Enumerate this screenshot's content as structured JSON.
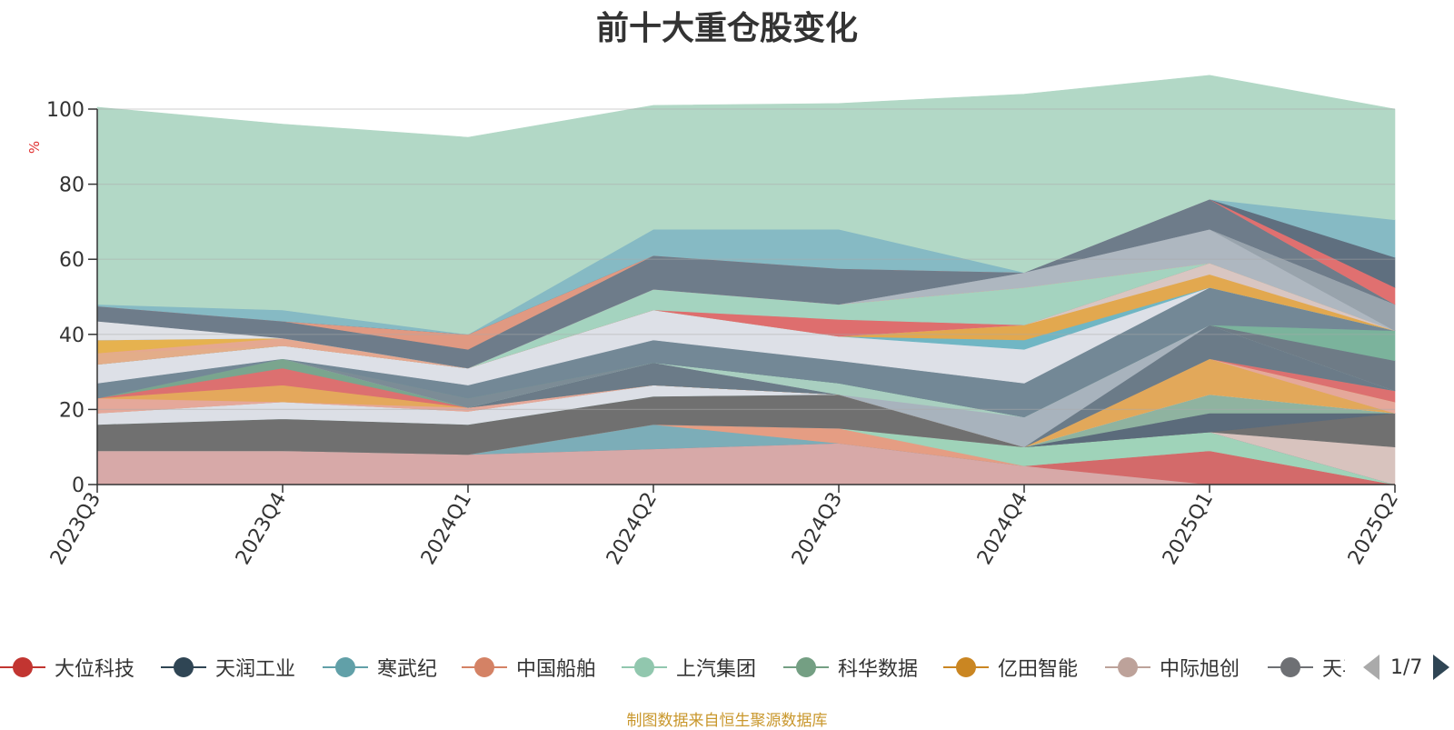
{
  "chart_data": {
    "type": "area",
    "title": "前十大重仓股变化",
    "ylabel": "%",
    "ylim": [
      0,
      100
    ],
    "yticks": [
      0,
      20,
      40,
      60,
      80,
      100
    ],
    "categories": [
      "2023Q3",
      "2023Q4",
      "2024Q1",
      "2024Q2",
      "2024Q3",
      "2024Q4",
      "2025Q1",
      "2025Q2"
    ],
    "stack_order_bottom_to_top": true,
    "layers": [
      {
        "color": "#d7a9a8",
        "values": [
          9,
          9,
          8,
          9.5,
          11,
          5,
          0,
          0
        ]
      },
      {
        "color": "#d36a6a",
        "values": [
          0,
          0,
          0,
          0,
          0,
          0,
          9,
          0
        ]
      },
      {
        "color": "#7cadb8",
        "values": [
          0,
          0,
          0,
          6.5,
          0,
          0,
          0,
          0
        ]
      },
      {
        "color": "#e59d83",
        "values": [
          0,
          0,
          0,
          0,
          4,
          0,
          0,
          0
        ]
      },
      {
        "color": "#9fd3b9",
        "values": [
          0,
          0,
          0,
          0,
          0,
          5,
          5,
          0
        ]
      },
      {
        "color": "#5c6b7a",
        "values": [
          0,
          0,
          0,
          0,
          0,
          0,
          0,
          0
        ]
      },
      {
        "color": "#d8c3be",
        "values": [
          0,
          0,
          0,
          0,
          0,
          0,
          0,
          10
        ]
      },
      {
        "color": "#707070",
        "values": [
          7,
          8.5,
          8,
          7.5,
          9,
          0,
          0,
          9
        ]
      },
      {
        "color": "#5b6b7b",
        "values": [
          0,
          0,
          0,
          0,
          0,
          0,
          5,
          0
        ]
      },
      {
        "color": "#8fb3a0",
        "values": [
          0,
          0,
          0,
          0,
          0,
          0,
          5,
          0
        ]
      },
      {
        "color": "#dcdfe6",
        "values": [
          3,
          4.5,
          3.5,
          3,
          0,
          0,
          0,
          0
        ]
      },
      {
        "color": "#e2a85a",
        "values": [
          0,
          0,
          0,
          0,
          0,
          0,
          9.5,
          0
        ]
      },
      {
        "color": "#d1b1ab",
        "values": [
          0,
          0,
          0,
          0,
          0,
          0,
          0,
          0
        ]
      },
      {
        "color": "#e5a89a",
        "values": [
          4,
          0,
          1,
          0,
          0,
          0,
          0,
          3
        ]
      },
      {
        "color": "#e4a85c",
        "values": [
          0,
          4.5,
          0,
          0,
          0,
          0,
          0,
          0
        ]
      },
      {
        "color": "#dc7070",
        "values": [
          0,
          4.5,
          0,
          0,
          0,
          0,
          0,
          3
        ]
      },
      {
        "color": "#7aa58e",
        "values": [
          0,
          2.5,
          0,
          0,
          0,
          0,
          0,
          0
        ]
      },
      {
        "color": "#6b7b88",
        "values": [
          0,
          0,
          0,
          6,
          0,
          0,
          9,
          0
        ]
      },
      {
        "color": "#a8b3bd",
        "values": [
          0,
          0,
          0,
          0,
          0,
          8,
          0,
          0
        ]
      },
      {
        "color": "#a9cfc0",
        "values": [
          0,
          0,
          0,
          0,
          3,
          0,
          0,
          0
        ]
      },
      {
        "color": "#7c8c96",
        "values": [
          0,
          0,
          2.5,
          0,
          0,
          0,
          0,
          0
        ]
      },
      {
        "color": "#6e7b86",
        "values": [
          0,
          0,
          0,
          0,
          0,
          0,
          0,
          8
        ]
      },
      {
        "color": "#7bb39c",
        "values": [
          0,
          0,
          0,
          0,
          0,
          0,
          0,
          8
        ]
      },
      {
        "color": "#738896",
        "values": [
          4,
          0,
          3.5,
          6,
          6,
          9,
          10,
          0
        ]
      },
      {
        "color": "#dde0e7",
        "values": [
          5,
          3.5,
          4.5,
          8,
          6.5,
          9,
          0,
          0
        ]
      },
      {
        "color": "#70b6c4",
        "values": [
          0,
          0,
          0,
          0,
          0,
          2.5,
          0,
          0
        ]
      },
      {
        "color": "#e2a84f",
        "values": [
          0,
          0,
          0,
          0,
          0,
          4,
          3.5,
          0
        ]
      },
      {
        "color": "#d9c6c2",
        "values": [
          0,
          0,
          0,
          0,
          0,
          0,
          3,
          0
        ]
      },
      {
        "color": "#de6e6e",
        "values": [
          0,
          0,
          0,
          0,
          4.5,
          0,
          0,
          0
        ]
      },
      {
        "color": "#a4d3bf",
        "values": [
          0,
          0,
          0,
          5.5,
          4,
          10,
          0,
          0
        ]
      },
      {
        "color": "#e3ad89",
        "values": [
          3,
          0,
          0,
          0,
          0,
          0,
          0,
          0
        ]
      },
      {
        "color": "#e5a890",
        "values": [
          0,
          2,
          0,
          0,
          0,
          0,
          0,
          0
        ]
      },
      {
        "color": "#e6b24f",
        "values": [
          3.5,
          0,
          0,
          0,
          0,
          0,
          0,
          0
        ]
      },
      {
        "color": "#d1c5c4",
        "values": [
          0,
          0,
          0,
          0,
          0,
          0,
          0,
          0
        ]
      },
      {
        "color": "#aeb7c0",
        "values": [
          0,
          0,
          0,
          0,
          0,
          4,
          9,
          0
        ]
      },
      {
        "color": "#98a3ac",
        "values": [
          0,
          0,
          0,
          0,
          0,
          0,
          0,
          7
        ]
      },
      {
        "color": "#dfe1e6",
        "values": [
          5,
          0,
          0,
          0,
          0,
          0,
          0,
          0
        ]
      },
      {
        "color": "#6e7c8a",
        "values": [
          4,
          4.5,
          5,
          9,
          9.5,
          0,
          8,
          0
        ]
      },
      {
        "color": "#e09982",
        "values": [
          0,
          0,
          4,
          0,
          0,
          0,
          0,
          0
        ]
      },
      {
        "color": "#e07070",
        "values": [
          0,
          0,
          0,
          0,
          0,
          0,
          0,
          4.5
        ]
      },
      {
        "color": "#5f6f7f",
        "values": [
          0,
          0,
          0,
          0,
          0,
          0,
          0,
          8
        ]
      },
      {
        "color": "#86bac4",
        "values": [
          0.5,
          3,
          0,
          7,
          10.5,
          0,
          0,
          10
        ]
      },
      {
        "color": "#b2d8c6",
        "values": [
          52.5,
          49.5,
          52.5,
          33,
          33.5,
          47.5,
          33,
          29.5
        ]
      }
    ],
    "legend": [
      {
        "name": "大位科技",
        "color": "#c23531"
      },
      {
        "name": "天润工业",
        "color": "#2f4554"
      },
      {
        "name": "寒武纪",
        "color": "#61a0a8"
      },
      {
        "name": "中国船舶",
        "color": "#d48265"
      },
      {
        "name": "上汽集团",
        "color": "#91c7ae"
      },
      {
        "name": "科华数据",
        "color": "#749f83"
      },
      {
        "name": "亿田智能",
        "color": "#ca8622"
      },
      {
        "name": "中际旭创",
        "color": "#bda29a"
      },
      {
        "name": "天孚",
        "color": "#6e7074"
      }
    ],
    "legend_page": "1/7",
    "legend_placement": "bottom",
    "grid": true
  },
  "source_note": "制图数据来自恒生聚源数据库",
  "colors": {
    "axis": "#333333",
    "grid": "#aaaaaa",
    "ylabel": "#e03030",
    "source": "#c9972c"
  }
}
